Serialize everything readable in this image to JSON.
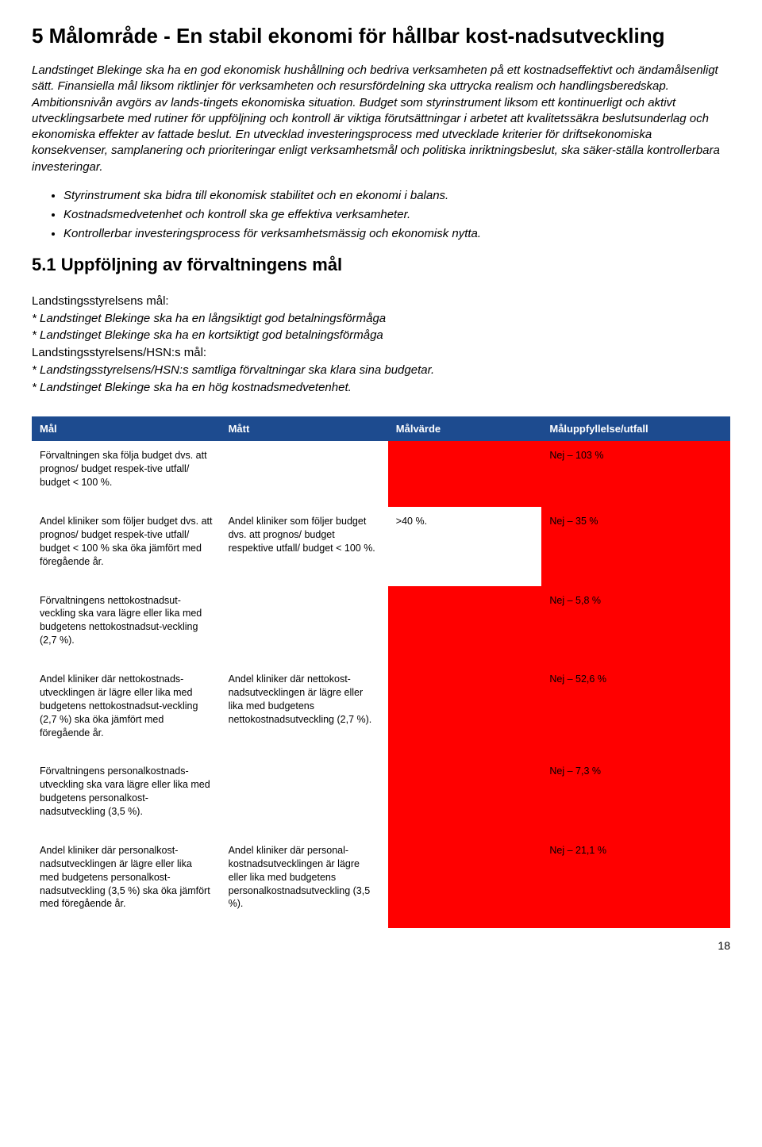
{
  "heading": "5 Målområde - En stabil ekonomi för hållbar kost-nadsutveckling",
  "intro_paragraph": "Landstinget Blekinge ska ha en god ekonomisk hushållning och bedriva verksamheten på ett kostnadseffektivt och ändamålsenligt sätt. Finansiella mål liksom riktlinjer för verksamheten och resursfördelning ska uttrycka realism och handlingsberedskap. Ambitionsnivån avgörs av lands-tingets ekonomiska situation. Budget som styrinstrument liksom ett kontinuerligt och aktivt utvecklingsarbete med rutiner för uppföljning och kontroll är viktiga förutsättningar i arbetet att kvalitetssäkra beslutsunderlag och ekonomiska effekter av fattade beslut. En utvecklad investeringsprocess med utvecklade kriterier för driftsekonomiska konsekvenser, samplanering och prioriteringar enligt verksamhetsmål och politiska inriktningsbeslut, ska säker-ställa kontrollerbara investeringar.",
  "bullets": [
    "Styrinstrument ska bidra till ekonomisk stabilitet och en ekonomi i balans.",
    "Kostnadsmedvetenhet och kontroll ska ge effektiva verksamheter.",
    "Kontrollerbar investeringsprocess för verksamhetsmässig och ekonomisk nytta."
  ],
  "subheading": "5.1 Uppföljning av förvaltningens mål",
  "goals": {
    "label1": "Landstingsstyrelsens mål:",
    "g1": "* Landstinget Blekinge ska ha en långsiktigt god betalningsförmåga",
    "g2": "* Landstinget Blekinge ska ha en kortsiktigt god betalningsförmåga",
    "label2": "Landstingsstyrelsens/HSN:s mål:",
    "g3": "* Landstingsstyrelsens/HSN:s samtliga förvaltningar ska klara sina budgetar.",
    "g4": "* Landstinget Blekinge ska ha en hög kostnadsmedvetenhet."
  },
  "table": {
    "headers": [
      "Mål",
      "Mått",
      "Målvärde",
      "Måluppfyllelse/utfall"
    ],
    "rows": [
      {
        "c1": "Förvaltningen ska följa budget dvs. att prognos/ budget respek-tive utfall/ budget < 100 %.",
        "c2": "",
        "c3": "",
        "c4": "Nej – 103 %"
      },
      {
        "c1": "Andel kliniker som följer budget dvs. att prognos/ budget respek-tive utfall/ budget < 100 % ska öka jämfört med föregående år.",
        "c2": "Andel kliniker som följer budget dvs. att prognos/ budget respektive utfall/ budget < 100 %.",
        "c3": ">40 %.",
        "c4": "Nej – 35 %"
      },
      {
        "c1": "Förvaltningens nettokostnadsut-veckling ska vara lägre eller lika med budgetens nettokostnadsut-veckling (2,7 %).",
        "c2": "",
        "c3": "",
        "c4": "Nej – 5,8 %"
      },
      {
        "c1": "Andel kliniker där nettokostnads-utvecklingen är lägre eller lika med budgetens nettokostnadsut-veckling (2,7 %) ska öka jämfört med föregående år.",
        "c2": "Andel kliniker där nettokost-nadsutvecklingen är lägre eller lika med budgetens nettokostnadsutveckling (2,7 %).",
        "c3": "",
        "c4": " Nej – 52,6 %"
      },
      {
        "c1": "Förvaltningens personalkostnads-utveckling ska vara lägre eller lika med budgetens personalkost-nadsutveckling (3,5 %).",
        "c2": "",
        "c3": "",
        "c4": "Nej – 7,3 %"
      },
      {
        "c1": "Andel kliniker där personalkost-nadsutvecklingen är lägre eller lika med budgetens personalkost-nadsutveckling (3,5 %) ska öka jämfört med föregående år.",
        "c2": "Andel kliniker där personal-kostnadsutvecklingen är lägre eller lika med budgetens personalkostnadsutveckling (3,5 %).",
        "c3": "",
        "c4": "Nej – 21,1 %"
      }
    ]
  },
  "page_number": "18",
  "colors": {
    "header_bg": "#1d4b8f",
    "header_fg": "#ffffff",
    "red_bg": "#ff0000",
    "text": "#000000",
    "bg": "#ffffff"
  }
}
